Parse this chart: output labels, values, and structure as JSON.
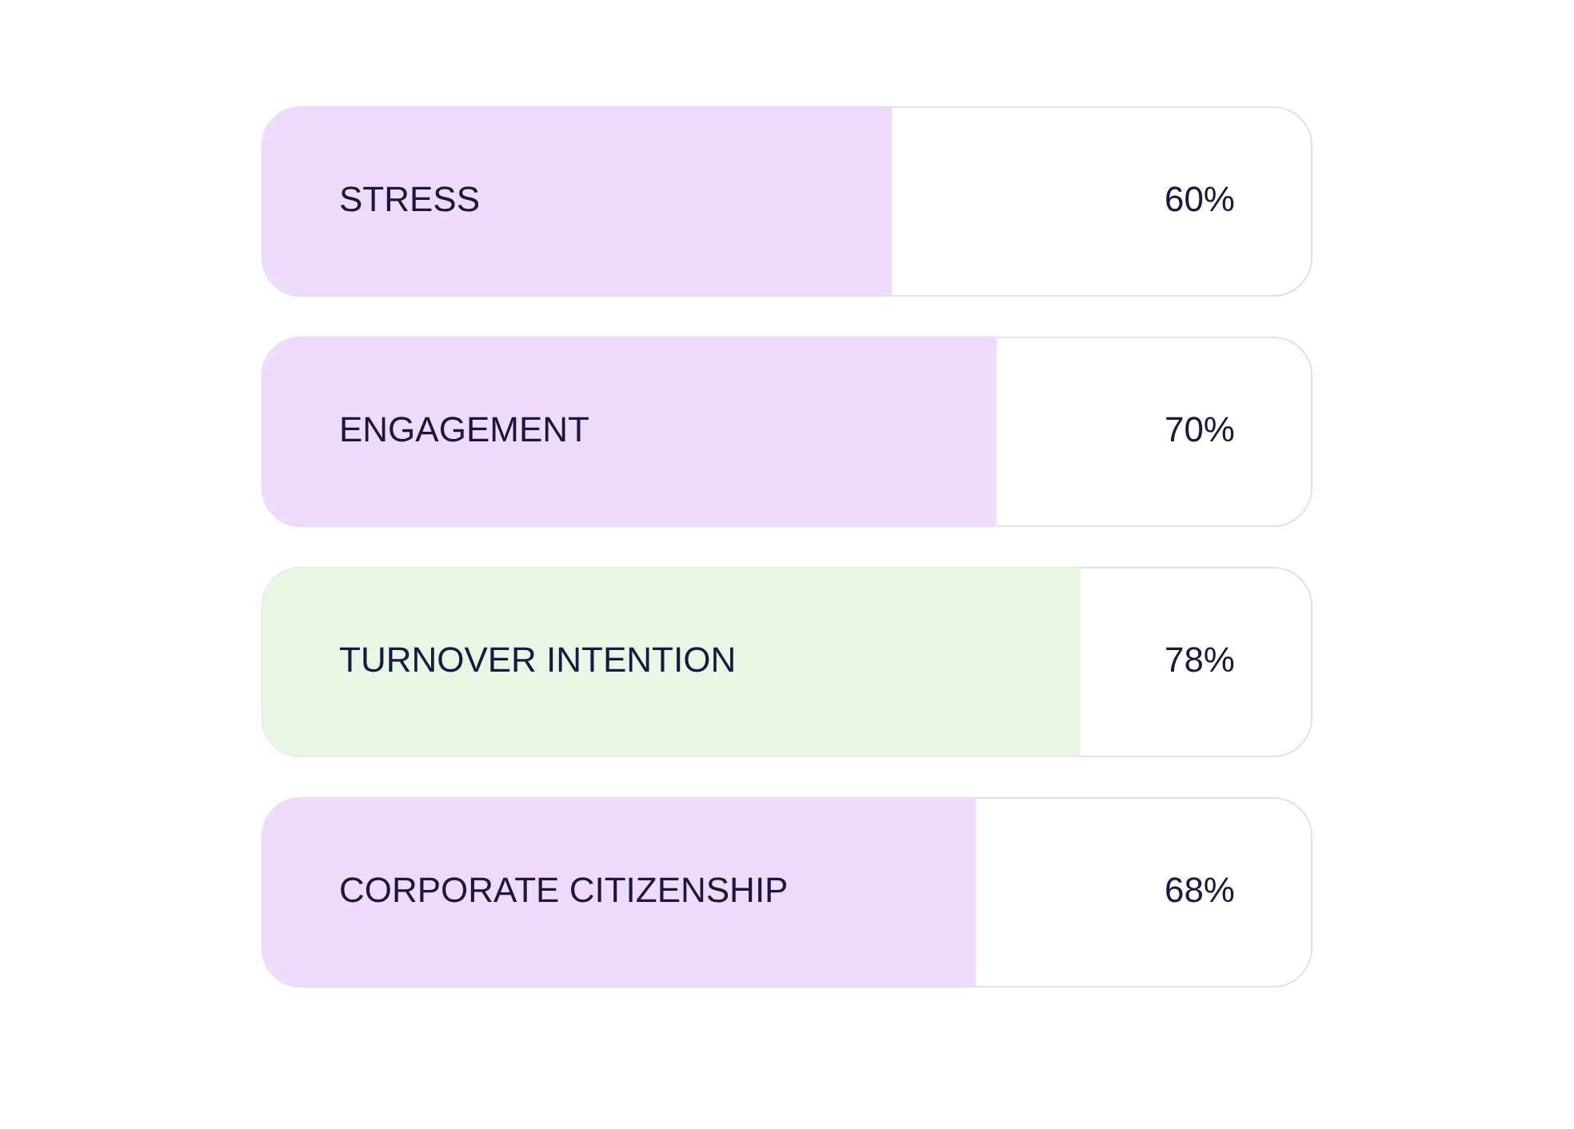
{
  "chart_data": {
    "type": "bar",
    "orientation": "horizontal",
    "categories": [
      "STRESS",
      "ENGAGEMENT",
      "TURNOVER INTENTION",
      "CORPORATE CITIZENSHIP"
    ],
    "values": [
      60,
      70,
      78,
      68
    ],
    "colors": [
      "#efdcfc",
      "#efdcfc",
      "#e8f6e4",
      "#efdcfc"
    ],
    "value_labels": [
      "60%",
      "70%",
      "78%",
      "68%"
    ],
    "xlim": [
      0,
      100
    ],
    "tick_labels": false,
    "legend": false
  }
}
